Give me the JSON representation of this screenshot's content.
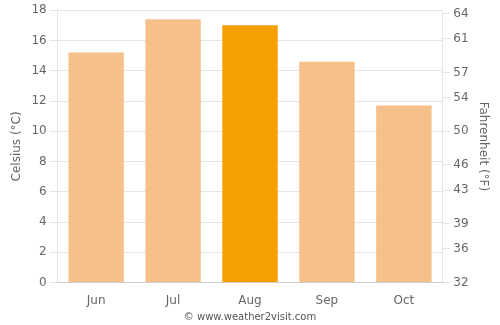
{
  "chart_data": {
    "type": "bar",
    "categories": [
      "Jun",
      "Jul",
      "Aug",
      "Sep",
      "Oct"
    ],
    "values": [
      15.2,
      17.4,
      17.0,
      14.6,
      11.7
    ],
    "colors": [
      "#f5c08a",
      "#f5c08a",
      "#f5a000",
      "#f5c08a",
      "#f5c08a"
    ],
    "ylabel": "Celsius (°C)",
    "y2label": "Fahrenheit (°F)",
    "ylim": [
      0,
      18
    ],
    "yticks": [
      0,
      2,
      4,
      6,
      8,
      10,
      12,
      14,
      16,
      18
    ],
    "y2lim": [
      32,
      64.4
    ],
    "y2ticks": [
      32,
      36,
      39,
      43,
      46,
      50,
      54,
      57,
      61,
      64
    ],
    "grid": true,
    "annotations": [
      "© www.weather2visit.com"
    ]
  }
}
